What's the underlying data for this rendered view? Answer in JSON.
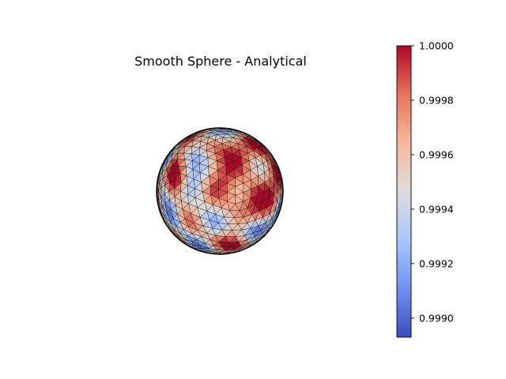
{
  "chart_data": {
    "type": "surface-3d",
    "title": "Smooth Sphere - Analytical",
    "surface": "triangulated unit sphere",
    "colormap": "coolwarm",
    "colormap_stops": [
      "#3b4cc0",
      "#6f92f3",
      "#aac7fd",
      "#dddcdc",
      "#f7b89c",
      "#e7745b",
      "#b40426"
    ],
    "edge_color": "#000000",
    "colorbar": {
      "vmin": 0.99893,
      "vmax": 1.0,
      "ticks": [
        0.999,
        0.9992,
        0.9994,
        0.9996,
        0.9998,
        1.0
      ],
      "tick_labels": [
        "0.9990",
        "0.9992",
        "0.9994",
        "0.9996",
        "0.9998",
        "1.0000"
      ],
      "placement": "right"
    },
    "axes": "off"
  }
}
